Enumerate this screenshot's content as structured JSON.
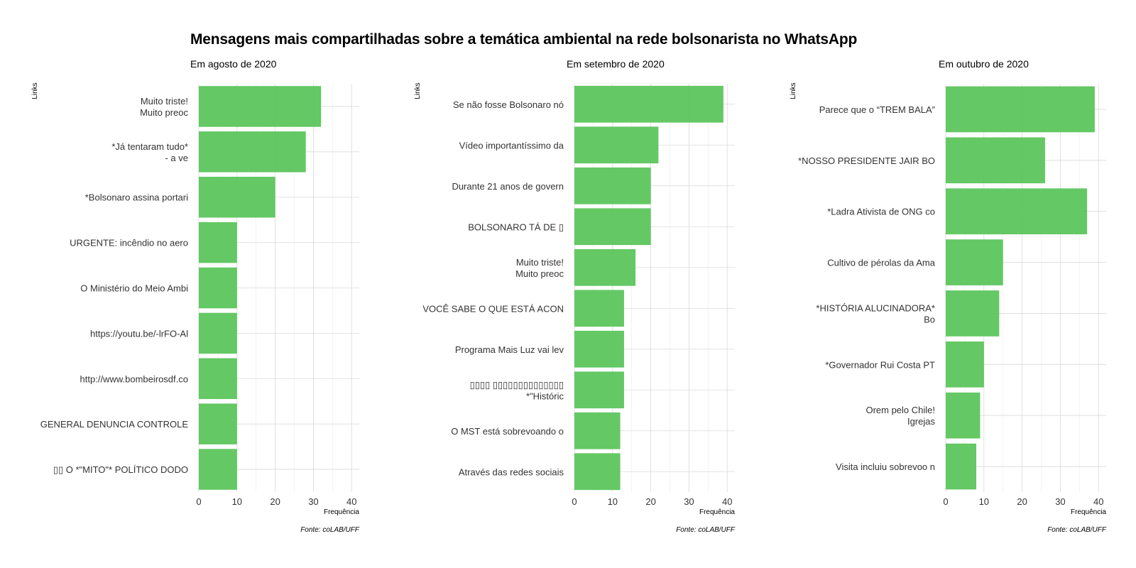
{
  "title": "Mensagens mais compartilhadas sobre a temática ambiental na rede bolsonarista no WhatsApp",
  "colors": {
    "bar": "#5cc55c"
  },
  "chart_data": [
    {
      "type": "bar",
      "orientation": "horizontal",
      "subtitle": "Em agosto de 2020",
      "ylabel": "Links",
      "xlabel": "Frequência",
      "caption": "Fonte: coLAB/UFF",
      "xlim": [
        0,
        42
      ],
      "xticks": [
        0,
        10,
        20,
        30,
        40
      ],
      "categories": [
        "Muito triste!\nMuito preoc",
        "*Já tentaram tudo*\n- a ve",
        "*Bolsonaro assina portari",
        "URGENTE: incêndio no aero",
        "O Ministério do Meio Ambi",
        "https://youtu.be/-lrFO-Al",
        "http://www.bombeirosdf.co",
        "GENERAL DENUNCIA CONTROLE",
        "▯▯ O *\"MITO\"* POLÍTICO DODO"
      ],
      "values": [
        32,
        28,
        20,
        10,
        10,
        10,
        10,
        10,
        10
      ]
    },
    {
      "type": "bar",
      "orientation": "horizontal",
      "subtitle": "Em setembro de 2020",
      "ylabel": "Links",
      "xlabel": "Frequência",
      "caption": "Fonte: coLAB/UFF",
      "xlim": [
        0,
        42
      ],
      "xticks": [
        0,
        10,
        20,
        30,
        40
      ],
      "categories": [
        "Se não fosse Bolsonaro nó",
        "Vídeo importantíssimo da",
        "Durante 21 anos de govern",
        "BOLSONARO TÁ DE    ▯",
        "Muito triste!\nMuito preoc",
        "VOCÊ SABE O QUE ESTÁ ACON",
        "Programa Mais Luz vai lev",
        "▯▯▯▯  ▯▯▯▯▯▯▯▯▯▯▯▯▯▯\n*\"Históric",
        "O MST está sobrevoando o",
        "Através das redes sociais"
      ],
      "values": [
        39,
        22,
        20,
        20,
        16,
        13,
        13,
        13,
        12,
        12
      ]
    },
    {
      "type": "bar",
      "orientation": "horizontal",
      "subtitle": "Em outubro de 2020",
      "ylabel": "Links",
      "xlabel": "Frequência",
      "caption": "Fonte: coLAB/UFF",
      "xlim": [
        0,
        42
      ],
      "xticks": [
        0,
        10,
        20,
        30,
        40
      ],
      "categories": [
        "Parece que o “TREM BALA”",
        "*NOSSO PRESIDENTE JAIR BO",
        "*Ladra Ativista de ONG co",
        "Cultivo de pérolas da Ama",
        "*HISTÓRIA ALUCINADORA*\nBo",
        "*Governador Rui Costa PT",
        "Orem pelo Chile!\nIgrejas",
        "Visita incluiu sobrevoo n"
      ],
      "values": [
        39,
        26,
        37,
        15,
        14,
        10,
        9,
        8
      ]
    }
  ]
}
